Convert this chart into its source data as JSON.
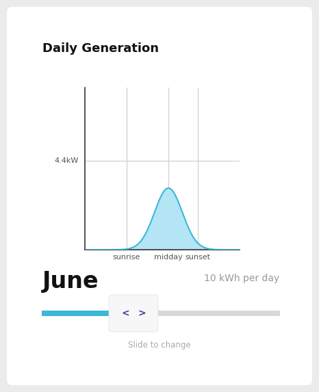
{
  "title": "Daily Generation",
  "month": "June",
  "kwh_label": "10 kWh per day",
  "peak_label": "4.4kW",
  "x_ticks": [
    "sunrise",
    "midday",
    "sunset"
  ],
  "curve_color": "#3ab8d8",
  "curve_fill_color": "#b3e5f5",
  "background_color": "#ebebeb",
  "card_color": "#ffffff",
  "slider_filled_color": "#3ab8d8",
  "slider_empty_color": "#d8d8d8",
  "slider_button_color": "#f7f7f7",
  "slider_button_edge": "#e0e0e0",
  "arrow_color": "#3a3aaa",
  "slide_text": "Slide to change",
  "slide_text_color": "#aaaaaa",
  "axis_line_color": "#333333",
  "grid_line_color": "#cccccc",
  "title_fontsize": 13,
  "month_fontsize": 24,
  "kwh_fontsize": 10,
  "tick_fontsize": 8,
  "peak_fontsize": 8
}
